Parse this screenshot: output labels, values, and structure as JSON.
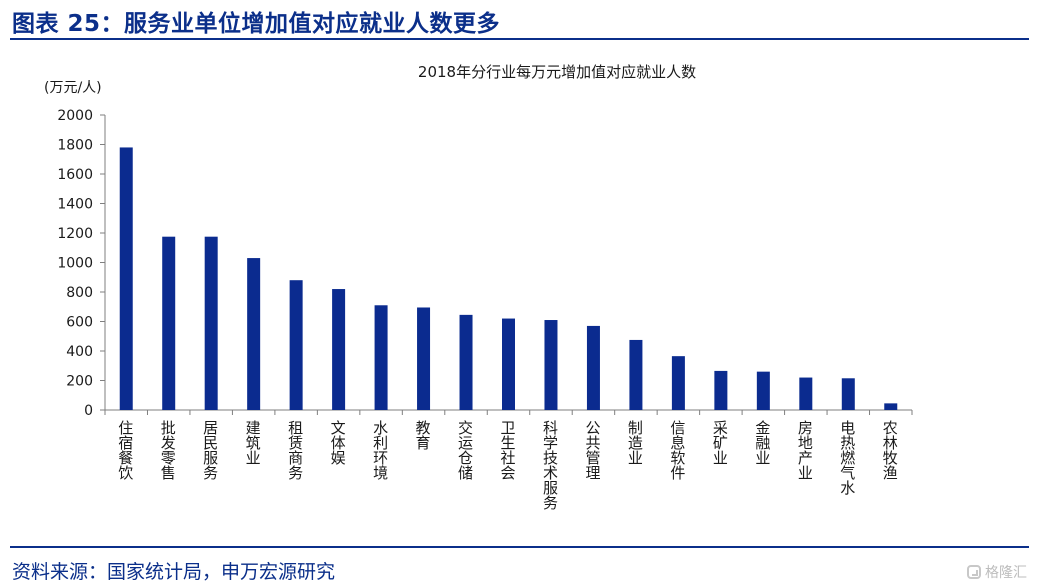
{
  "figure_title": "图表 25：服务业单位增加值对应就业人数更多",
  "source": "资料来源：国家统计局，申万宏源研究",
  "watermark": "格隆汇",
  "colors": {
    "bar": "#0B2B8F",
    "accent": "#0B2F8A"
  },
  "chart_data": {
    "type": "bar",
    "title": "2018年分行业每万元增加值对应就业人数",
    "unit_label": "(万元/人)",
    "xlabel": "",
    "ylabel": "",
    "ylim": [
      0,
      2000
    ],
    "yticks": [
      0,
      200,
      400,
      600,
      800,
      1000,
      1200,
      1400,
      1600,
      1800,
      2000
    ],
    "grid": false,
    "legend": "none",
    "categories": [
      "住宿餐饮",
      "批发零售",
      "居民服务",
      "建筑业",
      "租赁商务",
      "文体娱",
      "水利环境",
      "教育",
      "交运仓储",
      "卫生社会",
      "科学技术服务",
      "公共管理",
      "制造业",
      "信息软件",
      "采矿业",
      "金融业",
      "房地产业",
      "电热燃气水",
      "农林牧渔"
    ],
    "values": [
      1780,
      1175,
      1175,
      1030,
      880,
      820,
      710,
      695,
      645,
      620,
      610,
      570,
      475,
      365,
      265,
      260,
      220,
      215,
      45
    ]
  }
}
